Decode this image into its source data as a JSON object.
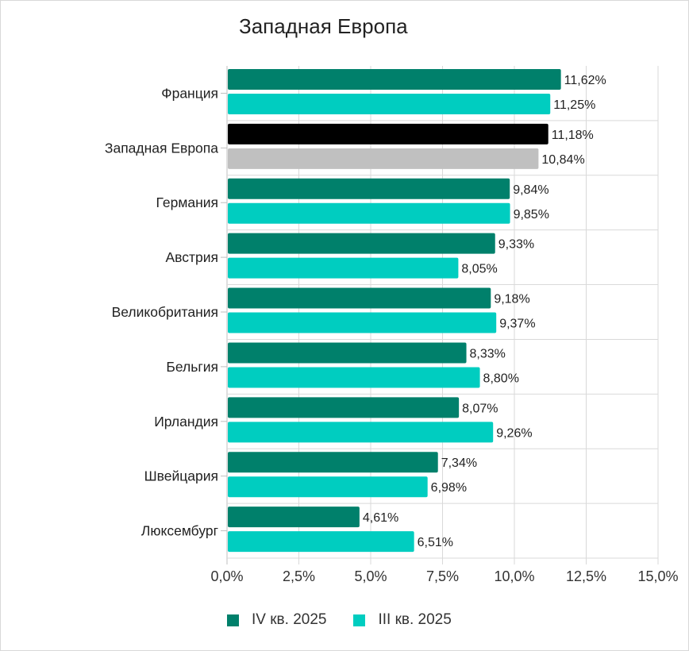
{
  "chart_data": {
    "type": "bar",
    "orientation": "horizontal",
    "title": "Западная Европа",
    "categories": [
      "Франция",
      "Западная Европа",
      "Германия",
      "Австрия",
      "Великобритания",
      "Бельгия",
      "Ирландия",
      "Швейцария",
      "Люксембург"
    ],
    "series": [
      {
        "name": "IV кв. 2025",
        "color": "#00806B",
        "values": [
          11.62,
          11.18,
          9.84,
          9.33,
          9.18,
          8.33,
          8.07,
          7.34,
          4.61
        ],
        "labels": [
          "11,62%",
          "11,18%",
          "9,84%",
          "9,33%",
          "9,18%",
          "8,33%",
          "8,07%",
          "7,34%",
          "4,61%"
        ]
      },
      {
        "name": "III кв. 2025",
        "color": "#00CDC0",
        "values": [
          11.25,
          10.84,
          9.85,
          8.05,
          9.37,
          8.8,
          9.26,
          6.98,
          6.51
        ],
        "labels": [
          "11,25%",
          "10,84%",
          "9,85%",
          "8,05%",
          "9,37%",
          "8,80%",
          "9,26%",
          "6,98%",
          "6,51%"
        ]
      }
    ],
    "highlight": {
      "category": "Западная Европа",
      "colors": [
        "#000000",
        "#C0C0C0"
      ]
    },
    "xlim": [
      0,
      15
    ],
    "xticks": [
      0,
      2.5,
      5,
      7.5,
      10,
      12.5,
      15
    ],
    "xtick_labels": [
      "0,0%",
      "2,5%",
      "5,0%",
      "7,5%",
      "10,0%",
      "12,5%",
      "15,0%"
    ],
    "grid": true,
    "legend_position": "bottom"
  }
}
